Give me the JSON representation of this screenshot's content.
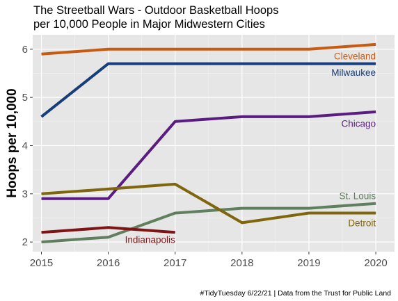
{
  "chart_data": {
    "type": "line",
    "title_lines": [
      "The Streetball Wars - Outdoor Basketball Hoops",
      "per 10,000 People in Major Midwestern Cities"
    ],
    "xlabel": "",
    "ylabel": "Hoops per 10,000",
    "caption": "#TidyTuesday 6/22/21 | Data from the Trust for Public Land",
    "x": [
      2015,
      2016,
      2017,
      2018,
      2019,
      2020
    ],
    "x_tick_labels": [
      "2015",
      "2016",
      "2017",
      "2018",
      "2019",
      "2020"
    ],
    "y_ticks": [
      2,
      3,
      4,
      5,
      6
    ],
    "y_tick_labels": [
      "2",
      "3",
      "4",
      "5",
      "6"
    ],
    "xlim": [
      2014.87,
      2020.28
    ],
    "ylim": [
      1.8,
      6.3
    ],
    "grid": true,
    "legend": "none (direct labels)",
    "series": [
      {
        "name": "Cleveland",
        "color": "#C75B12",
        "x": [
          2015,
          2016,
          2017,
          2018,
          2019,
          2020
        ],
        "values": [
          5.9,
          6.0,
          6.0,
          6.0,
          6.0,
          6.1
        ],
        "label_anchor": [
          2020,
          5.86
        ]
      },
      {
        "name": "Milwaukee",
        "color": "#173D7A",
        "x": [
          2015,
          2016,
          2017,
          2018,
          2019,
          2020
        ],
        "values": [
          4.6,
          5.7,
          5.7,
          5.7,
          5.7,
          5.7
        ],
        "label_anchor": [
          2020,
          5.52
        ]
      },
      {
        "name": "Chicago",
        "color": "#5A1C80",
        "x": [
          2015,
          2016,
          2017,
          2018,
          2019,
          2020
        ],
        "values": [
          2.9,
          2.9,
          4.5,
          4.6,
          4.6,
          4.7
        ],
        "label_anchor": [
          2020,
          4.46
        ]
      },
      {
        "name": "St. Louis",
        "color": "#5F7F5F",
        "x": [
          2015,
          2016,
          2017,
          2018,
          2019,
          2020
        ],
        "values": [
          2.0,
          2.1,
          2.6,
          2.7,
          2.7,
          2.8
        ],
        "label_anchor": [
          2020,
          2.96
        ]
      },
      {
        "name": "Detroit",
        "color": "#7F660C",
        "x": [
          2015,
          2016,
          2017,
          2018,
          2019,
          2020
        ],
        "values": [
          3.0,
          3.1,
          3.2,
          2.4,
          2.6,
          2.6
        ],
        "label_anchor": [
          2020,
          2.4
        ]
      },
      {
        "name": "Indianapolis",
        "color": "#7F1416",
        "x": [
          2015,
          2016,
          2017
        ],
        "values": [
          2.2,
          2.3,
          2.2
        ],
        "label_anchor": [
          2017,
          2.05
        ]
      }
    ]
  }
}
